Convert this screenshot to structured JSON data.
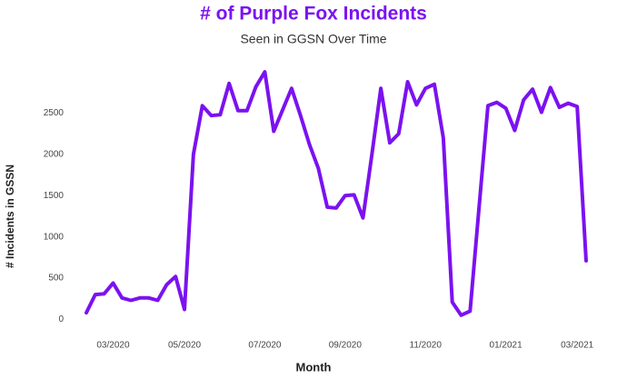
{
  "chart_data": {
    "type": "line",
    "title": "# of Purple Fox Incidents",
    "subtitle": "Seen in GGSN Over Time",
    "x_label": "Month",
    "y_label": "# Incidents in GSSN",
    "categories": [
      null,
      null,
      null,
      "03/2020",
      null,
      null,
      null,
      null,
      null,
      null,
      null,
      "05/2020",
      null,
      null,
      null,
      null,
      null,
      null,
      null,
      null,
      "07/2020",
      null,
      null,
      null,
      null,
      null,
      null,
      null,
      null,
      "09/2020",
      null,
      null,
      null,
      null,
      null,
      null,
      null,
      null,
      "11/2020",
      null,
      null,
      null,
      null,
      null,
      null,
      null,
      null,
      "01/2021",
      null,
      null,
      null,
      null,
      null,
      null,
      null,
      "03/2021",
      null
    ],
    "series": [
      {
        "name": "Incidents",
        "color": "#7b12f0",
        "values": [
          80,
          300,
          310,
          440,
          260,
          230,
          260,
          260,
          230,
          420,
          520,
          120,
          2000,
          2590,
          2470,
          2480,
          2860,
          2530,
          2530,
          2820,
          3000,
          2280,
          2540,
          2800,
          2470,
          2120,
          1830,
          1360,
          1350,
          1500,
          1510,
          1230,
          2000,
          2800,
          2140,
          2250,
          2880,
          2600,
          2800,
          2850,
          2200,
          210,
          50,
          100,
          1350,
          2590,
          2630,
          2560,
          2290,
          2660,
          2790,
          2510,
          2810,
          2570,
          2620,
          2580,
          710
        ]
      }
    ],
    "ylim": [
      -150,
      3100
    ],
    "yticks": [
      0,
      500,
      1000,
      1500,
      2000,
      2500
    ]
  }
}
